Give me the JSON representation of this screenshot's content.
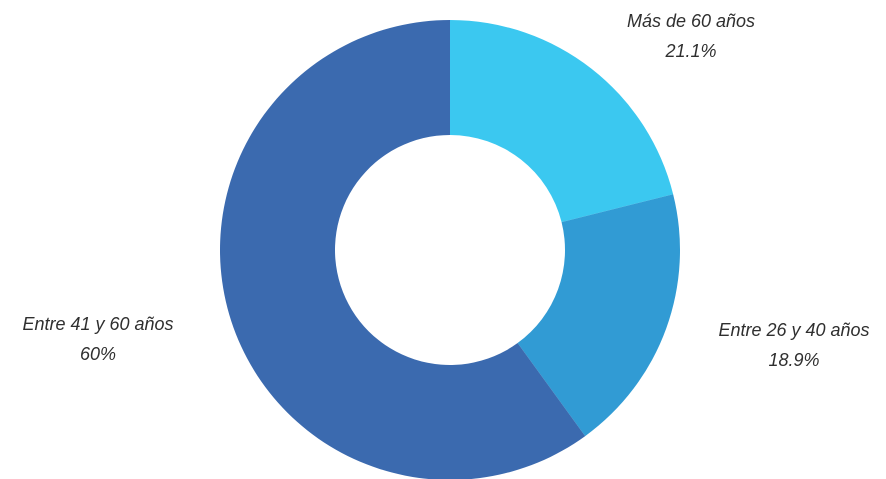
{
  "chart_data": {
    "type": "pie",
    "donut": true,
    "title": "",
    "slices": [
      {
        "label": "Más de 60 años",
        "value_label": "21.1%",
        "value": 21.1,
        "color": "#3bc8f0"
      },
      {
        "label": "Entre 26 y 40 años",
        "value_label": "18.9%",
        "value": 18.9,
        "color": "#319bd4"
      },
      {
        "label": "Entre 41 y 60 años",
        "value_label": "60%",
        "value": 60,
        "color": "#3b6aaf"
      }
    ],
    "legend": "none"
  }
}
